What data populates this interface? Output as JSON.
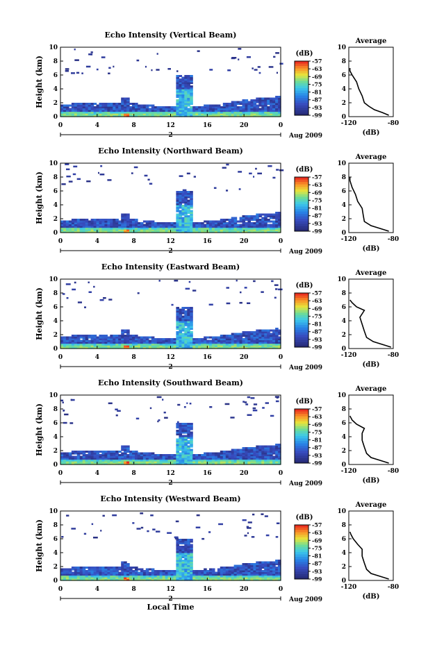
{
  "figure": {
    "date_label": "Aug 2009",
    "xlabel": "Local Time",
    "day_marker": "2",
    "avg_title": "Average",
    "avg_xlabel": "(dB)",
    "cbar_title": "(dB)"
  },
  "chart_data": [
    {
      "type": "heatmap",
      "title": "Echo Intensity (Vertical Beam)",
      "ylabel": "Height (km)",
      "xlim": [
        0,
        24
      ],
      "ylim": [
        0,
        10
      ],
      "x_ticks": [
        "0",
        "4",
        "8",
        "12",
        "16",
        "20",
        "0"
      ],
      "y_ticks": [
        "0",
        "2",
        "4",
        "6",
        "8",
        "10"
      ],
      "colorbar_ticks": [
        "-57",
        "-63",
        "-69",
        "-75",
        "-81",
        "-87",
        "-93",
        "-99"
      ],
      "colorbar_range": [
        -99,
        -57
      ],
      "average_profile": {
        "xlim": [
          -120,
          -80
        ],
        "x_ticks": [
          "-120",
          "-80"
        ],
        "ylim": [
          0,
          10
        ],
        "y_ticks": [
          "0",
          "2",
          "4",
          "6",
          "8",
          "10"
        ],
        "points": [
          [
            -84,
            0.2
          ],
          [
            -90,
            0.6
          ],
          [
            -97,
            1.0
          ],
          [
            -102,
            1.5
          ],
          [
            -106,
            2.0
          ],
          [
            -108,
            3.0
          ],
          [
            -111,
            4.0
          ],
          [
            -113,
            5.0
          ],
          [
            -117,
            6.0
          ],
          [
            -119,
            6.6
          ],
          [
            -119,
            7.0
          ]
        ]
      }
    },
    {
      "type": "heatmap",
      "title": "Echo Intensity (Northward Beam)",
      "ylabel": "Height (km)",
      "xlim": [
        0,
        24
      ],
      "ylim": [
        0,
        10
      ],
      "x_ticks": [
        "0",
        "4",
        "8",
        "12",
        "16",
        "20",
        "0"
      ],
      "y_ticks": [
        "0",
        "2",
        "4",
        "6",
        "8",
        "10"
      ],
      "colorbar_ticks": [
        "-57",
        "-63",
        "-69",
        "-75",
        "-81",
        "-87",
        "-93",
        "-99"
      ],
      "colorbar_range": [
        -99,
        -57
      ],
      "average_profile": {
        "xlim": [
          -120,
          -80
        ],
        "x_ticks": [
          "-120",
          "-80"
        ],
        "ylim": [
          0,
          10
        ],
        "y_ticks": [
          "0",
          "2",
          "4",
          "6",
          "8",
          "10"
        ],
        "points": [
          [
            -84,
            0.2
          ],
          [
            -92,
            0.6
          ],
          [
            -100,
            1.0
          ],
          [
            -106,
            1.6
          ],
          [
            -107,
            2.5
          ],
          [
            -108,
            3.5
          ],
          [
            -112,
            4.5
          ],
          [
            -114,
            5.5
          ],
          [
            -117,
            6.5
          ],
          [
            -119,
            7.5
          ],
          [
            -119,
            8.0
          ]
        ]
      }
    },
    {
      "type": "heatmap",
      "title": "Echo Intensity (Eastward Beam)",
      "ylabel": "Height (km)",
      "xlim": [
        0,
        24
      ],
      "ylim": [
        0,
        10
      ],
      "x_ticks": [
        "0",
        "4",
        "8",
        "12",
        "16",
        "20",
        "0"
      ],
      "y_ticks": [
        "0",
        "2",
        "4",
        "6",
        "8",
        "10"
      ],
      "colorbar_ticks": [
        "-57",
        "-63",
        "-69",
        "-75",
        "-81",
        "-87",
        "-93",
        "-99"
      ],
      "colorbar_range": [
        -99,
        -57
      ],
      "average_profile": {
        "xlim": [
          -120,
          -80
        ],
        "x_ticks": [
          "-120",
          "-80"
        ],
        "ylim": [
          0,
          10
        ],
        "y_ticks": [
          "0",
          "2",
          "4",
          "6",
          "8",
          "10"
        ],
        "points": [
          [
            -82,
            0.2
          ],
          [
            -90,
            0.6
          ],
          [
            -98,
            1.0
          ],
          [
            -104,
            1.6
          ],
          [
            -106,
            2.5
          ],
          [
            -108,
            3.5
          ],
          [
            -110,
            4.5
          ],
          [
            -106,
            5.5
          ],
          [
            -113,
            6.0
          ],
          [
            -117,
            6.6
          ],
          [
            -119,
            7.0
          ]
        ]
      }
    },
    {
      "type": "heatmap",
      "title": "Echo Intensity (Southward Beam)",
      "ylabel": "Height (km)",
      "xlim": [
        0,
        24
      ],
      "ylim": [
        0,
        10
      ],
      "x_ticks": [
        "0",
        "4",
        "8",
        "12",
        "16",
        "20",
        "0"
      ],
      "y_ticks": [
        "0",
        "2",
        "4",
        "6",
        "8",
        "10"
      ],
      "colorbar_ticks": [
        "-57",
        "-63",
        "-69",
        "-75",
        "-81",
        "-87",
        "-93",
        "-99"
      ],
      "colorbar_range": [
        -99,
        -57
      ],
      "average_profile": {
        "xlim": [
          -120,
          -80
        ],
        "x_ticks": [
          "-120",
          "-80"
        ],
        "ylim": [
          0,
          10
        ],
        "y_ticks": [
          "0",
          "2",
          "4",
          "6",
          "8",
          "10"
        ],
        "points": [
          [
            -84,
            0.2
          ],
          [
            -92,
            0.6
          ],
          [
            -100,
            1.0
          ],
          [
            -104,
            1.6
          ],
          [
            -106,
            2.5
          ],
          [
            -108,
            3.5
          ],
          [
            -108,
            4.5
          ],
          [
            -106,
            5.2
          ],
          [
            -113,
            5.8
          ],
          [
            -117,
            6.4
          ],
          [
            -119,
            7.0
          ]
        ]
      }
    },
    {
      "type": "heatmap",
      "title": "Echo Intensity (Westward Beam)",
      "ylabel": "Height (km)",
      "xlim": [
        0,
        24
      ],
      "ylim": [
        0,
        10
      ],
      "x_ticks": [
        "0",
        "4",
        "8",
        "12",
        "16",
        "20",
        "0"
      ],
      "y_ticks": [
        "0",
        "2",
        "4",
        "6",
        "8",
        "10"
      ],
      "colorbar_ticks": [
        "-57",
        "-63",
        "-69",
        "-75",
        "-81",
        "-87",
        "-93",
        "-99"
      ],
      "colorbar_range": [
        -99,
        -57
      ],
      "average_profile": {
        "xlim": [
          -120,
          -80
        ],
        "x_ticks": [
          "-120",
          "-80"
        ],
        "ylim": [
          0,
          10
        ],
        "y_ticks": [
          "0",
          "2",
          "4",
          "6",
          "8",
          "10"
        ],
        "points": [
          [
            -84,
            0.2
          ],
          [
            -92,
            0.6
          ],
          [
            -100,
            1.0
          ],
          [
            -104,
            1.6
          ],
          [
            -106,
            2.5
          ],
          [
            -108,
            3.5
          ],
          [
            -108,
            4.5
          ],
          [
            -112,
            5.2
          ],
          [
            -116,
            6.0
          ],
          [
            -118,
            6.6
          ],
          [
            -119,
            7.0
          ]
        ]
      }
    }
  ]
}
